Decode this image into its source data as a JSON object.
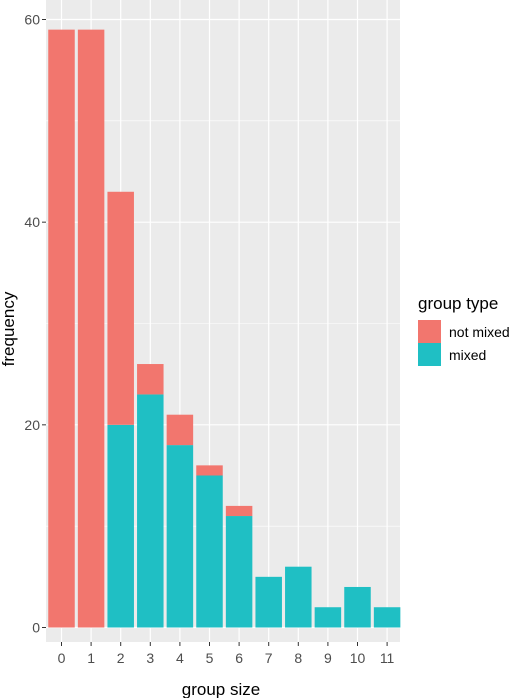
{
  "chart_data": {
    "type": "bar",
    "stacked": true,
    "title": "",
    "xlabel": "group size",
    "ylabel": "frequency",
    "categories": [
      "0",
      "1",
      "2",
      "3",
      "4",
      "5",
      "6",
      "7",
      "8",
      "9",
      "10",
      "11"
    ],
    "series": [
      {
        "name": "mixed",
        "color": "#1FBFC4",
        "values": [
          0,
          0,
          20,
          23,
          18,
          15,
          11,
          5,
          6,
          2,
          4,
          2
        ]
      },
      {
        "name": "not mixed",
        "color": "#F2766E",
        "values": [
          59,
          59,
          23,
          3,
          3,
          1,
          1,
          0,
          0,
          0,
          0,
          0
        ]
      }
    ],
    "ylim": [
      0,
      62
    ],
    "yticks": [
      0,
      20,
      40,
      60
    ],
    "grid": true,
    "legend": {
      "title": "group type",
      "position": "right",
      "entries": [
        {
          "label": "not mixed",
          "color": "#F2766E"
        },
        {
          "label": "mixed",
          "color": "#1FBFC4"
        }
      ]
    }
  }
}
